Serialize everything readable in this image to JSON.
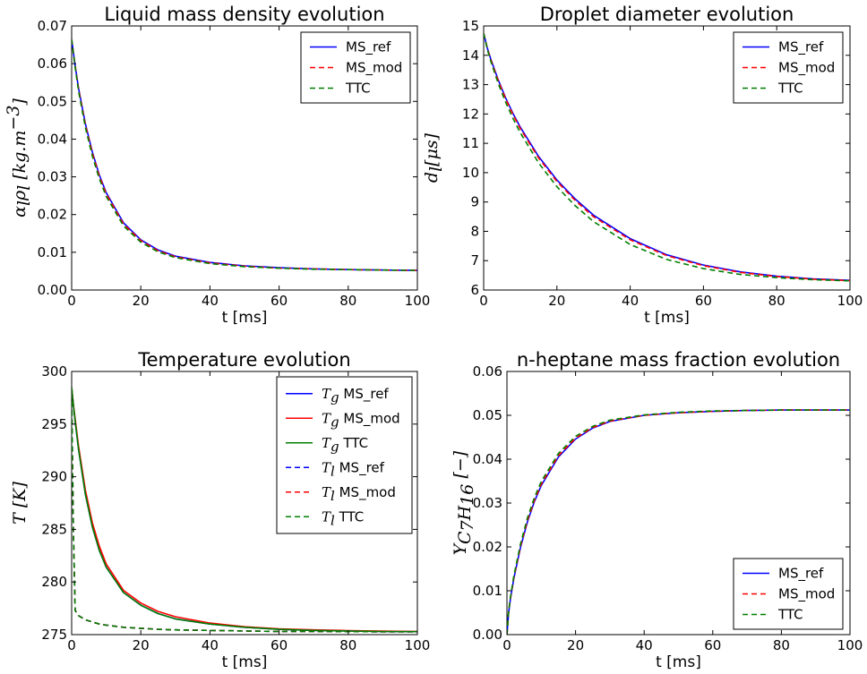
{
  "chart_data": [
    {
      "type": "line",
      "title": "Liquid mass density evolution",
      "xlabel": "t [ms]",
      "ylabel_main": "α",
      "ylabel_sub1": "l",
      "ylabel_mid": "ρ",
      "ylabel_sub2": "l",
      "ylabel_unit": "[kg.m",
      "ylabel_sup": "−3",
      "ylabel_close": "]",
      "xlim": [
        0,
        100
      ],
      "ylim": [
        0,
        0.07
      ],
      "xticks": [
        0,
        20,
        40,
        60,
        80,
        100
      ],
      "yticks": [
        0.0,
        0.01,
        0.02,
        0.03,
        0.04,
        0.05,
        0.06,
        0.07
      ],
      "ytick_labels": [
        "0.00",
        "0.01",
        "0.02",
        "0.03",
        "0.04",
        "0.05",
        "0.06",
        "0.07"
      ],
      "legend_position": "top-right",
      "x": [
        0,
        1,
        2,
        4,
        6,
        8,
        10,
        15,
        20,
        25,
        30,
        40,
        50,
        60,
        70,
        80,
        90,
        100
      ],
      "series": [
        {
          "name": "MS_ref",
          "color": "#0000ff",
          "dash": "solid",
          "values": [
            0.0665,
            0.0595,
            0.0535,
            0.044,
            0.0365,
            0.0305,
            0.0258,
            0.0178,
            0.0133,
            0.0106,
            0.009,
            0.0073,
            0.0064,
            0.0059,
            0.0056,
            0.0054,
            0.0053,
            0.0052
          ]
        },
        {
          "name": "MS_mod",
          "color": "#ff0000",
          "dash": "dashed",
          "values": [
            0.0665,
            0.0594,
            0.0533,
            0.0437,
            0.0362,
            0.0302,
            0.0255,
            0.0175,
            0.0131,
            0.0104,
            0.0088,
            0.0072,
            0.0063,
            0.0058,
            0.0056,
            0.0054,
            0.0053,
            0.0052
          ]
        },
        {
          "name": "TTC",
          "color": "#007f00",
          "dash": "dashed",
          "values": [
            0.0665,
            0.059,
            0.0527,
            0.043,
            0.0354,
            0.0295,
            0.0248,
            0.017,
            0.0127,
            0.0101,
            0.0086,
            0.007,
            0.0062,
            0.0058,
            0.0055,
            0.0054,
            0.0053,
            0.0052
          ]
        }
      ]
    },
    {
      "type": "line",
      "title": "Droplet diameter evolution",
      "xlabel": "t [ms]",
      "ylabel_main": "d",
      "ylabel_sub1": "l",
      "ylabel_unit": "[μs]",
      "xlim": [
        0,
        100
      ],
      "ylim": [
        6,
        15
      ],
      "xticks": [
        0,
        20,
        40,
        60,
        80,
        100
      ],
      "yticks": [
        6,
        7,
        8,
        9,
        10,
        11,
        12,
        13,
        14,
        15
      ],
      "ytick_labels": [
        "6",
        "7",
        "8",
        "9",
        "10",
        "11",
        "12",
        "13",
        "14",
        "15"
      ],
      "legend_position": "top-right",
      "x": [
        0,
        1,
        2,
        4,
        6,
        8,
        10,
        15,
        20,
        25,
        30,
        40,
        50,
        60,
        70,
        80,
        90,
        100
      ],
      "series": [
        {
          "name": "MS_ref",
          "color": "#0000ff",
          "dash": "solid",
          "values": [
            14.75,
            14.25,
            13.85,
            13.15,
            12.55,
            12.02,
            11.55,
            10.55,
            9.75,
            9.1,
            8.55,
            7.75,
            7.2,
            6.85,
            6.62,
            6.47,
            6.38,
            6.33
          ]
        },
        {
          "name": "MS_mod",
          "color": "#ff0000",
          "dash": "dashed",
          "values": [
            14.75,
            14.24,
            13.83,
            13.12,
            12.52,
            11.98,
            11.5,
            10.5,
            9.7,
            9.05,
            8.5,
            7.71,
            7.17,
            6.83,
            6.6,
            6.46,
            6.37,
            6.32
          ]
        },
        {
          "name": "TTC",
          "color": "#007f00",
          "dash": "dashed",
          "values": [
            14.75,
            14.2,
            13.77,
            13.03,
            12.4,
            11.85,
            11.36,
            10.33,
            9.52,
            8.87,
            8.33,
            7.55,
            7.04,
            6.73,
            6.53,
            6.42,
            6.35,
            6.31
          ]
        }
      ]
    },
    {
      "type": "line",
      "title": "Temperature evolution",
      "xlabel": "t [ms]",
      "ylabel_main": "T",
      "ylabel_unit": "[K]",
      "xlim": [
        0,
        100
      ],
      "ylim": [
        275,
        300
      ],
      "xticks": [
        0,
        20,
        40,
        60,
        80,
        100
      ],
      "yticks": [
        275,
        280,
        285,
        290,
        295,
        300
      ],
      "ytick_labels": [
        "275",
        "280",
        "285",
        "290",
        "295",
        "300"
      ],
      "legend_position": "top-right",
      "x": [
        0,
        0.5,
        1,
        2,
        4,
        6,
        8,
        10,
        15,
        20,
        25,
        30,
        40,
        50,
        60,
        70,
        80,
        90,
        100
      ],
      "series": [
        {
          "name": "MS_ref",
          "var": "T",
          "sub": "g",
          "color": "#0000ff",
          "dash": "solid",
          "values": [
            298.5,
            296.8,
            295.3,
            292.6,
            288.3,
            285.2,
            283.0,
            281.4,
            279.0,
            277.8,
            277.0,
            276.5,
            276.0,
            275.7,
            275.5,
            275.4,
            275.35,
            275.3,
            275.28
          ]
        },
        {
          "name": "MS_mod",
          "var": "T",
          "sub": "g",
          "color": "#ff0000",
          "dash": "solid",
          "values": [
            298.5,
            296.9,
            295.5,
            292.9,
            288.7,
            285.6,
            283.4,
            281.7,
            279.2,
            278.0,
            277.2,
            276.7,
            276.1,
            275.75,
            275.55,
            275.45,
            275.38,
            275.33,
            275.3
          ]
        },
        {
          "name": "TTC",
          "var": "T",
          "sub": "g",
          "color": "#007f00",
          "dash": "solid",
          "values": [
            298.5,
            296.8,
            295.3,
            292.6,
            288.3,
            285.2,
            283.0,
            281.4,
            279.0,
            277.8,
            277.0,
            276.5,
            276.0,
            275.7,
            275.5,
            275.4,
            275.35,
            275.3,
            275.28
          ]
        },
        {
          "name": "MS_ref",
          "var": "T",
          "sub": "l",
          "color": "#0000ff",
          "dash": "dashed",
          "values": [
            298.0,
            285.0,
            277.3,
            276.8,
            276.4,
            276.2,
            276.0,
            275.9,
            275.7,
            275.6,
            275.5,
            275.45,
            275.4,
            275.35,
            275.3,
            275.3,
            275.28,
            275.27,
            275.27
          ]
        },
        {
          "name": "MS_mod",
          "var": "T",
          "sub": "l",
          "color": "#ff0000",
          "dash": "dashed",
          "values": [
            298.0,
            285.0,
            277.3,
            276.8,
            276.4,
            276.2,
            276.0,
            275.9,
            275.7,
            275.6,
            275.5,
            275.45,
            275.4,
            275.35,
            275.3,
            275.3,
            275.28,
            275.27,
            275.27
          ]
        },
        {
          "name": "TTC",
          "var": "T",
          "sub": "l",
          "color": "#007f00",
          "dash": "dashed",
          "values": [
            298.0,
            285.0,
            277.3,
            276.8,
            276.4,
            276.2,
            276.0,
            275.9,
            275.7,
            275.6,
            275.5,
            275.45,
            275.4,
            275.35,
            275.3,
            275.3,
            275.28,
            275.27,
            275.27
          ]
        }
      ]
    },
    {
      "type": "line",
      "title": "n-heptane mass fraction evolution",
      "xlabel": "t [ms]",
      "ylabel_main": "Y",
      "ylabel_sub1": "C",
      "ylabel_subsub1": "7",
      "ylabel_sub2": "H",
      "ylabel_subsub2": "16",
      "ylabel_unit": "[−]",
      "xlim": [
        0,
        100
      ],
      "ylim": [
        0,
        0.06
      ],
      "xticks": [
        0,
        20,
        40,
        60,
        80,
        100
      ],
      "yticks": [
        0.0,
        0.01,
        0.02,
        0.03,
        0.04,
        0.05,
        0.06
      ],
      "ytick_labels": [
        "0.00",
        "0.01",
        "0.02",
        "0.03",
        "0.04",
        "0.05",
        "0.06"
      ],
      "legend_position": "bottom-right",
      "x": [
        0,
        0.5,
        1,
        2,
        4,
        6,
        8,
        10,
        15,
        20,
        25,
        30,
        40,
        50,
        60,
        70,
        80,
        90,
        100
      ],
      "series": [
        {
          "name": "MS_ref",
          "color": "#0000ff",
          "dash": "solid",
          "values": [
            0.0,
            0.005,
            0.008,
            0.0128,
            0.02,
            0.0258,
            0.0303,
            0.034,
            0.0405,
            0.0446,
            0.0471,
            0.0486,
            0.05,
            0.0506,
            0.0509,
            0.0511,
            0.0512,
            0.0512,
            0.0512
          ]
        },
        {
          "name": "MS_mod",
          "color": "#ff0000",
          "dash": "dashed",
          "values": [
            0.0,
            0.0051,
            0.0081,
            0.013,
            0.0203,
            0.0261,
            0.0306,
            0.0343,
            0.0408,
            0.0448,
            0.0472,
            0.0487,
            0.05,
            0.0506,
            0.0509,
            0.0511,
            0.0512,
            0.0512,
            0.0512
          ]
        },
        {
          "name": "TTC",
          "color": "#007f00",
          "dash": "dashed",
          "values": [
            0.0,
            0.0053,
            0.0084,
            0.0134,
            0.0208,
            0.0267,
            0.0312,
            0.0349,
            0.0413,
            0.0452,
            0.0475,
            0.0489,
            0.0501,
            0.0507,
            0.051,
            0.0511,
            0.0512,
            0.0512,
            0.0512
          ]
        }
      ]
    }
  ]
}
